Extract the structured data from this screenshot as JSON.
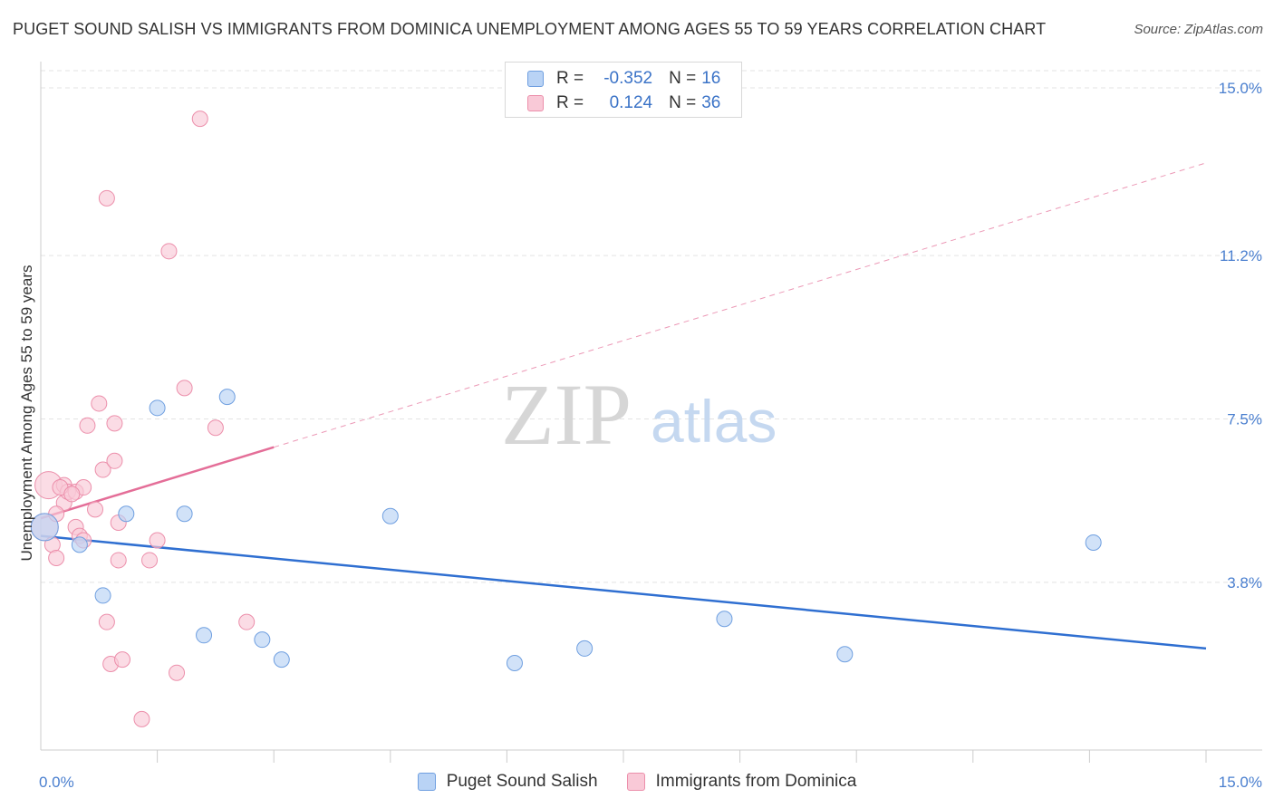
{
  "title": "PUGET SOUND SALISH VS IMMIGRANTS FROM DOMINICA UNEMPLOYMENT AMONG AGES 55 TO 59 YEARS CORRELATION CHART",
  "source": "Source: ZipAtlas.com",
  "watermark": {
    "zip": "ZIP",
    "atlas": "atlas"
  },
  "legend": {
    "r_label": "R =",
    "n_label": "N =",
    "rows": [
      {
        "series": "Puget Sound Salish",
        "r": "-0.352",
        "n": "16",
        "fill": "#b9d3f5",
        "stroke": "#6f9fe0"
      },
      {
        "series": "Immigrants from Dominica",
        "r": "0.124",
        "n": "36",
        "fill": "#f9c9d7",
        "stroke": "#ec8fab"
      }
    ]
  },
  "chart_data": {
    "type": "scatter",
    "xlabel": "",
    "ylabel": "Unemployment Among Ages 55 to 59 years",
    "xlim": [
      0,
      15
    ],
    "ylim": [
      0,
      15.5
    ],
    "x_tick_labels": [
      {
        "value": 0,
        "label": "0.0%"
      },
      {
        "value": 15,
        "label": "15.0%"
      }
    ],
    "x_minor_ticks": [
      1.5,
      3.0,
      4.5,
      6.0,
      7.5,
      9.0,
      10.5,
      12.0,
      13.5,
      15.0
    ],
    "y_ticks": [
      {
        "value": 3.8,
        "label": "3.8%"
      },
      {
        "value": 7.5,
        "label": "7.5%"
      },
      {
        "value": 11.2,
        "label": "11.2%"
      },
      {
        "value": 15.0,
        "label": "15.0%"
      }
    ],
    "grid": true,
    "colors": {
      "blue_fill": "#b9d3f5",
      "blue_stroke": "#6f9fe0",
      "blue_line": "#2f6fd1",
      "pink_fill": "#f9c9d7",
      "pink_stroke": "#ec8fab",
      "pink_line": "#e46e98",
      "grid": "#e3e3e3"
    },
    "series": [
      {
        "name": "Puget Sound Salish",
        "color": "blue",
        "points": [
          {
            "x": 0.05,
            "y": 5.05,
            "big": true
          },
          {
            "x": 0.5,
            "y": 4.65
          },
          {
            "x": 0.8,
            "y": 3.5
          },
          {
            "x": 1.1,
            "y": 5.35
          },
          {
            "x": 1.5,
            "y": 7.75
          },
          {
            "x": 1.85,
            "y": 5.35
          },
          {
            "x": 2.1,
            "y": 2.6
          },
          {
            "x": 2.4,
            "y": 8.0
          },
          {
            "x": 2.85,
            "y": 2.5
          },
          {
            "x": 3.1,
            "y": 2.05
          },
          {
            "x": 4.5,
            "y": 5.3
          },
          {
            "x": 6.1,
            "y": 1.97
          },
          {
            "x": 7.0,
            "y": 2.3
          },
          {
            "x": 8.8,
            "y": 2.97
          },
          {
            "x": 10.35,
            "y": 2.17
          },
          {
            "x": 13.55,
            "y": 4.7
          }
        ],
        "trend": {
          "x0": 0,
          "y0": 4.85,
          "x1": 15,
          "y1": 2.3,
          "solid_until": 15
        }
      },
      {
        "name": "Immigrants from Dominica",
        "color": "pink",
        "points": [
          {
            "x": 0.05,
            "y": 5.05,
            "big": true
          },
          {
            "x": 0.1,
            "y": 6.0,
            "big": true
          },
          {
            "x": 0.15,
            "y": 4.65
          },
          {
            "x": 0.2,
            "y": 4.35
          },
          {
            "x": 0.3,
            "y": 6.0
          },
          {
            "x": 0.3,
            "y": 5.6
          },
          {
            "x": 0.35,
            "y": 5.85
          },
          {
            "x": 0.45,
            "y": 5.85
          },
          {
            "x": 0.45,
            "y": 5.05
          },
          {
            "x": 0.55,
            "y": 5.95
          },
          {
            "x": 0.5,
            "y": 4.85
          },
          {
            "x": 0.55,
            "y": 4.75
          },
          {
            "x": 0.6,
            "y": 7.35
          },
          {
            "x": 0.7,
            "y": 5.45
          },
          {
            "x": 0.75,
            "y": 7.85
          },
          {
            "x": 0.8,
            "y": 6.35
          },
          {
            "x": 0.85,
            "y": 2.9
          },
          {
            "x": 0.85,
            "y": 12.5
          },
          {
            "x": 0.9,
            "y": 1.95
          },
          {
            "x": 0.95,
            "y": 6.55
          },
          {
            "x": 0.95,
            "y": 7.4
          },
          {
            "x": 1.0,
            "y": 5.15
          },
          {
            "x": 1.0,
            "y": 4.3
          },
          {
            "x": 1.05,
            "y": 2.05
          },
          {
            "x": 1.3,
            "y": 0.7
          },
          {
            "x": 1.4,
            "y": 4.3
          },
          {
            "x": 1.5,
            "y": 4.75
          },
          {
            "x": 1.65,
            "y": 11.3
          },
          {
            "x": 1.75,
            "y": 1.75
          },
          {
            "x": 1.85,
            "y": 8.2
          },
          {
            "x": 2.05,
            "y": 14.3
          },
          {
            "x": 2.25,
            "y": 7.3
          },
          {
            "x": 2.65,
            "y": 2.9
          },
          {
            "x": 0.25,
            "y": 5.95
          },
          {
            "x": 0.4,
            "y": 5.8
          },
          {
            "x": 0.2,
            "y": 5.35
          }
        ],
        "trend": {
          "x0": 0,
          "y0": 5.25,
          "x1": 15,
          "y1": 13.3,
          "solid_until": 3.0
        }
      }
    ]
  }
}
